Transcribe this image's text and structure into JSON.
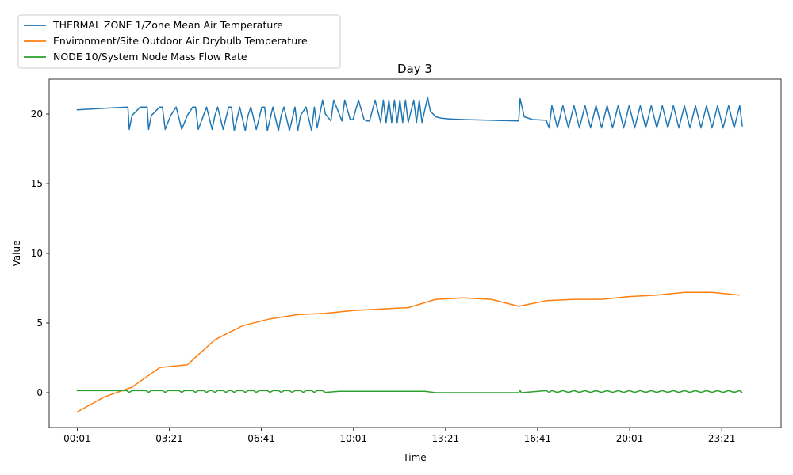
{
  "chart_data": {
    "type": "line",
    "title": "Day 3",
    "xlabel": "Time",
    "ylabel": "Value",
    "xlim_hours": [
      -1.0,
      25.5
    ],
    "ylim": [
      -2.5,
      22.5
    ],
    "x_ticks": [
      {
        "label": "00:01",
        "hours": 0.0167
      },
      {
        "label": "03:21",
        "hours": 3.35
      },
      {
        "label": "06:41",
        "hours": 6.683
      },
      {
        "label": "10:01",
        "hours": 10.017
      },
      {
        "label": "13:21",
        "hours": 13.35
      },
      {
        "label": "16:41",
        "hours": 16.683
      },
      {
        "label": "20:01",
        "hours": 20.017
      },
      {
        "label": "23:21",
        "hours": 23.35
      }
    ],
    "y_ticks": [
      0,
      5,
      10,
      15,
      20
    ],
    "legend_position": "above-left",
    "series": [
      {
        "name": "THERMAL ZONE 1/Zone Mean Air Temperature",
        "color": "#1f77b4",
        "hours": [
          0.0,
          1.85,
          1.9,
          2.0,
          2.3,
          2.55,
          2.6,
          2.7,
          3.0,
          3.1,
          3.2,
          3.4,
          3.6,
          3.8,
          4.0,
          4.2,
          4.3,
          4.4,
          4.7,
          4.9,
          5.0,
          5.1,
          5.3,
          5.5,
          5.6,
          5.7,
          5.9,
          6.1,
          6.2,
          6.3,
          6.5,
          6.7,
          6.8,
          6.9,
          7.1,
          7.3,
          7.4,
          7.5,
          7.7,
          7.9,
          8.0,
          8.1,
          8.3,
          8.5,
          8.6,
          8.7,
          8.9,
          9.0,
          9.2,
          9.3,
          9.6,
          9.7,
          9.9,
          10.0,
          10.2,
          10.4,
          10.5,
          10.6,
          10.8,
          11.0,
          11.1,
          11.2,
          11.3,
          11.4,
          11.5,
          11.6,
          11.7,
          11.8,
          11.9,
          12.0,
          12.2,
          12.3,
          12.4,
          12.5,
          12.7,
          12.8,
          13.0,
          13.2,
          13.5,
          14.0,
          15.0,
          16.0,
          16.05,
          16.2,
          16.5,
          17.0,
          17.1,
          17.2,
          17.4,
          17.6,
          17.8,
          18.0,
          18.2,
          18.4,
          18.6,
          18.8,
          19.0,
          19.2,
          19.4,
          19.6,
          19.8,
          20.0,
          20.2,
          20.4,
          20.6,
          20.8,
          21.0,
          21.2,
          21.4,
          21.6,
          21.8,
          22.0,
          22.2,
          22.4,
          22.6,
          22.8,
          23.0,
          23.2,
          23.4,
          23.6,
          23.8,
          24.0,
          24.1
        ],
        "values": [
          20.3,
          20.5,
          18.9,
          19.9,
          20.5,
          20.5,
          18.9,
          19.9,
          20.5,
          20.5,
          18.9,
          19.9,
          20.5,
          18.9,
          19.9,
          20.5,
          20.5,
          18.9,
          20.5,
          18.9,
          19.9,
          20.5,
          18.9,
          20.5,
          20.5,
          18.8,
          20.5,
          18.8,
          19.9,
          20.5,
          18.9,
          20.5,
          20.5,
          18.8,
          20.5,
          18.8,
          19.9,
          20.5,
          18.8,
          20.5,
          18.8,
          19.9,
          20.5,
          18.8,
          20.5,
          19.0,
          21.0,
          20.0,
          19.5,
          21.0,
          19.5,
          21.0,
          19.6,
          19.6,
          21.0,
          19.6,
          19.5,
          19.5,
          21.0,
          19.4,
          21.0,
          19.4,
          21.0,
          19.4,
          21.0,
          19.4,
          21.0,
          19.4,
          21.0,
          19.4,
          21.0,
          19.4,
          21.0,
          19.4,
          21.2,
          20.2,
          19.8,
          19.7,
          19.65,
          19.6,
          19.55,
          19.5,
          21.1,
          19.8,
          19.6,
          19.55,
          19.0,
          20.6,
          19.0,
          20.6,
          19.0,
          20.6,
          19.0,
          20.6,
          19.0,
          20.6,
          19.0,
          20.6,
          19.0,
          20.6,
          19.0,
          20.6,
          19.0,
          20.6,
          19.0,
          20.6,
          19.0,
          20.6,
          19.0,
          20.6,
          19.0,
          20.6,
          19.0,
          20.6,
          19.0,
          20.6,
          19.0,
          20.6,
          19.0,
          20.6,
          19.0,
          20.6,
          19.1
        ]
      },
      {
        "name": "Environment/Site Outdoor Air Drybulb Temperature",
        "color": "#ff7f0e",
        "hours": [
          0.0,
          1.0,
          2.0,
          3.0,
          4.0,
          5.0,
          6.0,
          7.0,
          8.0,
          9.0,
          10.0,
          11.0,
          12.0,
          13.0,
          14.0,
          15.0,
          16.0,
          17.0,
          18.0,
          19.0,
          20.0,
          21.0,
          22.0,
          23.0,
          24.0
        ],
        "values": [
          -1.4,
          -0.3,
          0.4,
          1.8,
          2.0,
          3.8,
          4.8,
          5.3,
          5.6,
          5.7,
          5.9,
          6.0,
          6.1,
          6.7,
          6.8,
          6.7,
          6.2,
          6.6,
          6.7,
          6.7,
          6.9,
          7.0,
          7.2,
          7.2,
          7.0
        ]
      },
      {
        "name": "NODE 10/System Node Mass Flow Rate",
        "color": "#2ca02c",
        "hours": [
          0.0,
          1.8,
          1.9,
          2.0,
          2.5,
          2.6,
          2.7,
          3.1,
          3.2,
          3.3,
          3.7,
          3.8,
          3.9,
          4.2,
          4.3,
          4.4,
          4.6,
          4.7,
          4.8,
          4.9,
          5.0,
          5.1,
          5.3,
          5.4,
          5.5,
          5.6,
          5.7,
          5.8,
          6.0,
          6.1,
          6.2,
          6.4,
          6.5,
          6.6,
          6.9,
          7.0,
          7.1,
          7.3,
          7.4,
          7.5,
          7.7,
          7.8,
          7.9,
          8.1,
          8.2,
          8.3,
          8.5,
          8.6,
          8.7,
          8.9,
          9.0
        ],
        "values": [
          0.15,
          0.15,
          0.02,
          0.15,
          0.15,
          0.02,
          0.15,
          0.15,
          0.02,
          0.15,
          0.15,
          0.02,
          0.15,
          0.15,
          0.02,
          0.15,
          0.15,
          0.02,
          0.15,
          0.15,
          0.02,
          0.15,
          0.15,
          0.02,
          0.15,
          0.15,
          0.02,
          0.15,
          0.15,
          0.02,
          0.15,
          0.15,
          0.02,
          0.15,
          0.15,
          0.02,
          0.15,
          0.15,
          0.02,
          0.15,
          0.15,
          0.02,
          0.15,
          0.15,
          0.02,
          0.15,
          0.15,
          0.02,
          0.15,
          0.15,
          0.02
        ],
        "tail_hours": [
          9.0,
          9.5,
          10.0,
          10.4,
          10.9,
          11.1,
          11.4,
          11.6,
          11.9,
          12.1,
          12.3,
          12.6,
          13.0,
          16.0,
          16.05,
          16.1,
          17.0,
          17.1,
          17.2,
          17.4,
          17.6,
          17.8,
          18.0,
          18.2,
          18.4,
          18.6,
          18.8,
          19.0,
          19.2,
          19.4,
          19.6,
          19.8,
          20.0,
          20.2,
          20.4,
          20.6,
          20.8,
          21.0,
          21.2,
          21.4,
          21.6,
          21.8,
          22.0,
          22.2,
          22.4,
          22.6,
          22.8,
          23.0,
          23.2,
          23.4,
          23.6,
          23.8,
          24.0,
          24.1
        ],
        "tail_values": [
          0.02,
          0.1,
          0.1,
          0.1,
          0.1,
          0.1,
          0.1,
          0.1,
          0.1,
          0.1,
          0.1,
          0.1,
          0.0,
          0.0,
          0.15,
          0.0,
          0.15,
          0.02,
          0.15,
          0.02,
          0.15,
          0.02,
          0.15,
          0.02,
          0.15,
          0.02,
          0.15,
          0.02,
          0.15,
          0.02,
          0.15,
          0.02,
          0.15,
          0.02,
          0.15,
          0.02,
          0.15,
          0.02,
          0.15,
          0.02,
          0.15,
          0.02,
          0.15,
          0.02,
          0.15,
          0.02,
          0.15,
          0.02,
          0.15,
          0.02,
          0.15,
          0.02,
          0.15,
          0.0
        ]
      }
    ]
  }
}
